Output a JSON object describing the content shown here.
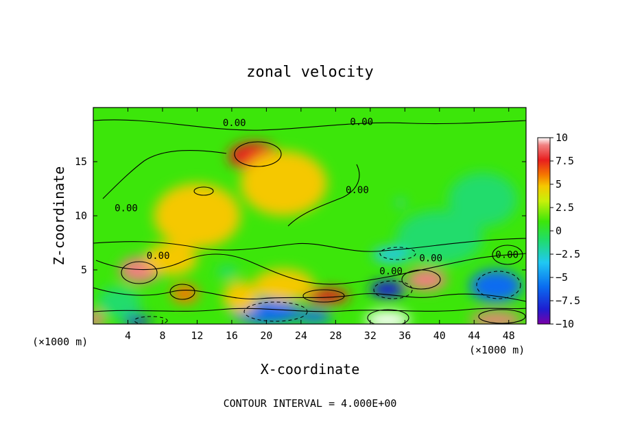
{
  "chart_data": {
    "type": "heatmap",
    "title": "zonal velocity",
    "xlabel": "X-coordinate",
    "ylabel": "Z-coordinate",
    "x_unit": "(×1000 m)",
    "xlim": [
      0,
      50
    ],
    "ylim": [
      0,
      20
    ],
    "x_ticks": [
      "4",
      "8",
      "12",
      "16",
      "20",
      "24",
      "28",
      "32",
      "36",
      "40",
      "44",
      "48"
    ],
    "y_ticks": [
      "5",
      "10",
      "15"
    ],
    "colorbar": {
      "ticks": [
        "10",
        "7.5",
        "5",
        "2.5",
        "0",
        "−2.5",
        "−5",
        "−7.5",
        "−10"
      ],
      "range": [
        -10,
        10
      ],
      "colors": [
        "#7a00a8",
        "#1e1ed0",
        "#0a6cf0",
        "#20c8f2",
        "#20dc6c",
        "#3ce60a",
        "#c8f00a",
        "#f5c800",
        "#f57800",
        "#e81e1e",
        "#f08080",
        "#ffffff"
      ]
    },
    "contour_labels": [
      {
        "text": "0.00",
        "x": 16.3,
        "y": 18.3
      },
      {
        "text": "0.00",
        "x": 31.0,
        "y": 18.4
      },
      {
        "text": "0.00",
        "x": 30.5,
        "y": 12.1
      },
      {
        "text": "0.00",
        "x": 3.8,
        "y": 10.4
      },
      {
        "text": "0.00",
        "x": 7.5,
        "y": 6.0
      },
      {
        "text": "0.00",
        "x": 39.0,
        "y": 5.8
      },
      {
        "text": "0.00",
        "x": 34.4,
        "y": 4.6
      },
      {
        "text": "0.00",
        "x": 47.8,
        "y": 6.1
      }
    ],
    "anomalies": [
      {
        "x": 18.6,
        "y": 15.5,
        "v": 5.5,
        "rx": 3.0,
        "ry": 1.3
      },
      {
        "x": 5.4,
        "y": 5.0,
        "v": 8.5,
        "rx": 2.4,
        "ry": 1.2
      },
      {
        "x": 10.6,
        "y": 2.8,
        "v": 4.5,
        "rx": 1.6,
        "ry": 0.9
      },
      {
        "x": 27.0,
        "y": 2.6,
        "v": 5.5,
        "rx": 2.6,
        "ry": 0.7
      },
      {
        "x": 38.5,
        "y": 4.1,
        "v": 8.5,
        "rx": 2.3,
        "ry": 1.0
      },
      {
        "x": 34.0,
        "y": 0.4,
        "v": 9.5,
        "rx": 2.6,
        "ry": 0.8
      },
      {
        "x": 46.5,
        "y": 0.4,
        "v": 9.0,
        "rx": 3.0,
        "ry": 0.7
      },
      {
        "x": 0.2,
        "y": 0.4,
        "v": 8.0,
        "rx": 1.0,
        "ry": 0.8
      },
      {
        "x": 5.0,
        "y": 0.3,
        "v": -8.5,
        "rx": 1.6,
        "ry": 0.5
      },
      {
        "x": 20.0,
        "y": 1.1,
        "v": -7.0,
        "rx": 4.0,
        "ry": 1.1
      },
      {
        "x": 34.0,
        "y": 3.2,
        "v": -7.5,
        "rx": 2.0,
        "ry": 0.8
      },
      {
        "x": 46.5,
        "y": 3.5,
        "v": -6.0,
        "rx": 3.0,
        "ry": 1.5
      },
      {
        "x": 34.5,
        "y": 6.4,
        "v": -4.0,
        "rx": 2.2,
        "ry": 0.7
      },
      {
        "x": 15.5,
        "y": 4.8,
        "v": -3.5,
        "rx": 1.2,
        "ry": 0.6
      },
      {
        "x": 25.5,
        "y": 0.7,
        "v": -6.5,
        "rx": 2.0,
        "ry": 0.6
      },
      {
        "x": 40.0,
        "y": 8.0,
        "v": -2.8,
        "rx": 5.0,
        "ry": 2.5
      },
      {
        "x": 45.0,
        "y": 11.5,
        "v": -2.5,
        "rx": 4.0,
        "ry": 2.5
      },
      {
        "x": 35.5,
        "y": 11.2,
        "v": -4.5,
        "rx": 0.5,
        "ry": 0.3
      },
      {
        "x": 3.0,
        "y": 2.0,
        "v": -2.0,
        "rx": 2.5,
        "ry": 1.5
      },
      {
        "x": 12.0,
        "y": 10.0,
        "v": 3.0,
        "rx": 5.0,
        "ry": 3.0
      },
      {
        "x": 22.0,
        "y": 13.0,
        "v": 2.2,
        "rx": 5.0,
        "ry": 3.0
      },
      {
        "x": 9.0,
        "y": 6.0,
        "v": 2.5,
        "rx": 3.0,
        "ry": 1.5
      },
      {
        "x": 22.0,
        "y": 3.6,
        "v": 3.0,
        "rx": 3.5,
        "ry": 1.5
      },
      {
        "x": 17.0,
        "y": 2.5,
        "v": 2.5,
        "rx": 2.0,
        "ry": 1.5
      }
    ],
    "footer": "CONTOUR INTERVAL = 4.000E+00"
  }
}
